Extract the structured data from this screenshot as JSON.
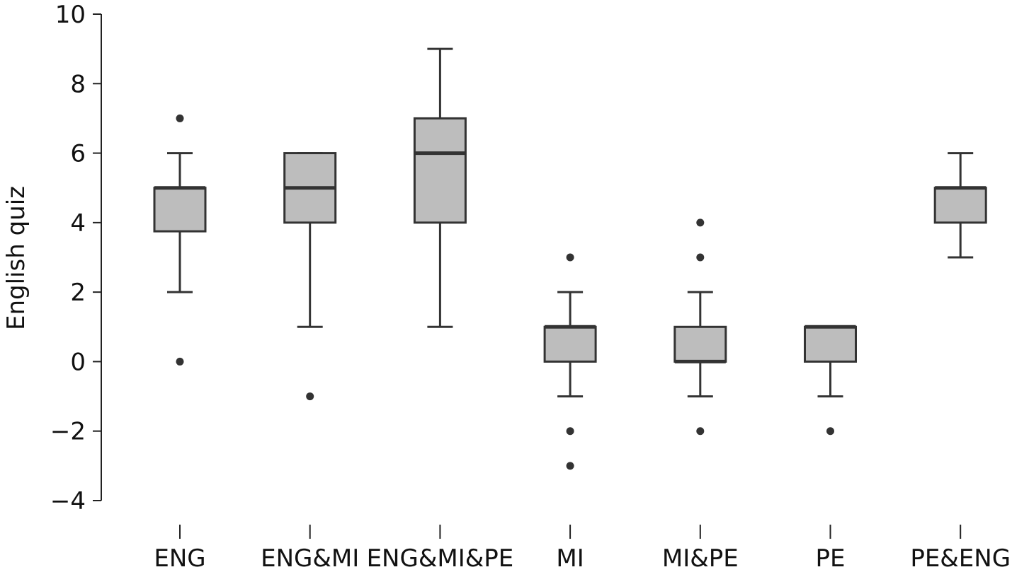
{
  "chart_data": {
    "type": "boxplot",
    "ylabel": "English quiz",
    "ylim": [
      -4,
      10
    ],
    "yticks": [
      -4,
      -2,
      0,
      2,
      4,
      6,
      8,
      10
    ],
    "ytick_labels": [
      "−4",
      "−2",
      "0",
      "2",
      "4",
      "6",
      "8",
      "10"
    ],
    "categories": [
      "ENG",
      "ENG&MI",
      "ENG&MI&PE",
      "MI",
      "MI&PE",
      "PE",
      "PE&ENG"
    ],
    "boxes": [
      {
        "category": "ENG",
        "whisker_low": 2,
        "q1": 3.75,
        "median": 5,
        "q3": 5,
        "whisker_high": 6,
        "outliers": [
          7,
          0
        ]
      },
      {
        "category": "ENG&MI",
        "whisker_low": 1,
        "q1": 4,
        "median": 5,
        "q3": 6,
        "whisker_high": 6,
        "outliers": [
          -1
        ]
      },
      {
        "category": "ENG&MI&PE",
        "whisker_low": 1,
        "q1": 4,
        "median": 6,
        "q3": 7,
        "whisker_high": 9,
        "outliers": []
      },
      {
        "category": "MI",
        "whisker_low": -1,
        "q1": 0,
        "median": 1,
        "q3": 1,
        "whisker_high": 2,
        "outliers": [
          3,
          -2,
          -3
        ]
      },
      {
        "category": "MI&PE",
        "whisker_low": -1,
        "q1": 0,
        "median": 0,
        "q3": 1,
        "whisker_high": 2,
        "outliers": [
          4,
          3,
          -2
        ]
      },
      {
        "category": "PE",
        "whisker_low": -1,
        "q1": 0,
        "median": 1,
        "q3": 1,
        "whisker_high": 1,
        "outliers": [
          -2
        ]
      },
      {
        "category": "PE&ENG",
        "whisker_low": 3,
        "q1": 4,
        "median": 5,
        "q3": 5,
        "whisker_high": 6,
        "outliers": []
      }
    ],
    "colors": {
      "box_fill": "#bdbdbd",
      "box_stroke": "#333333",
      "axis": "#222222"
    },
    "grid": false,
    "legend": "none"
  }
}
